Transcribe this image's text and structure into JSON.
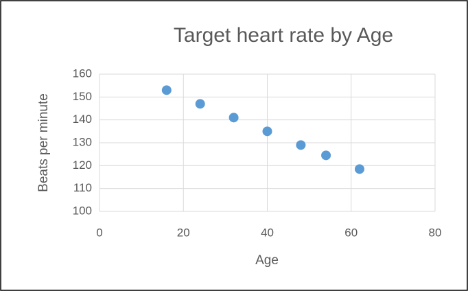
{
  "chart_data": {
    "type": "scatter",
    "title": "Target heart rate by Age",
    "x_label": "Age",
    "y_label": "Beats per minute",
    "x": [
      16,
      24,
      32,
      40,
      48,
      54,
      62
    ],
    "values": [
      153,
      147,
      141,
      135,
      129,
      124.5,
      118.5
    ],
    "color": "#5b9bd5",
    "xlim": [
      0,
      80
    ],
    "xticks": [
      0,
      20,
      40,
      60,
      80
    ],
    "ylim": [
      100,
      160
    ],
    "yticks": [
      100,
      110,
      120,
      130,
      140,
      150,
      160
    ],
    "grid": true
  }
}
